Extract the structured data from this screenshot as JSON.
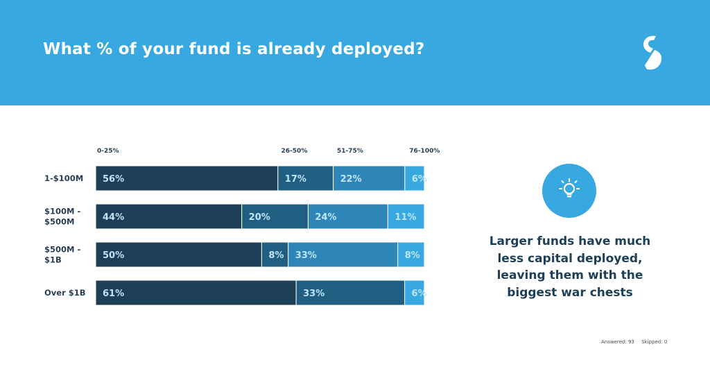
{
  "header": {
    "title": "What % of your fund is already deployed?"
  },
  "chart_data": {
    "type": "bar",
    "orientation": "horizontal",
    "stacked": true,
    "legend_position": "top",
    "categories": [
      "1-$100M",
      "$100M -\n$500M",
      "$500M -\n$1B",
      "Over $1B"
    ],
    "series": [
      {
        "name": "0-25%",
        "color": "#1c3e57",
        "values": [
          56,
          44,
          50,
          61
        ],
        "labels": [
          "56%",
          "44%",
          "50%",
          "61%"
        ]
      },
      {
        "name": "26-50%",
        "color": "#215f82",
        "values": [
          17,
          20,
          8,
          33
        ],
        "labels": [
          "17%",
          "20%",
          "8%",
          "33%"
        ]
      },
      {
        "name": "51-75%",
        "color": "#2e85b7",
        "values": [
          22,
          24,
          33,
          0
        ],
        "labels": [
          "22%",
          "24%",
          "33%",
          ""
        ]
      },
      {
        "name": "76-100%",
        "color": "#38a9e0",
        "values": [
          6,
          11,
          8,
          6
        ],
        "labels": [
          "6%",
          "11%",
          "8%",
          "6%"
        ]
      }
    ],
    "xlim": [
      0,
      100
    ]
  },
  "insight": {
    "icon": "lightbulb-icon",
    "text": "Larger funds have much less capital deployed, leaving them with the biggest war chests"
  },
  "footer": {
    "answered": "Answered: 93",
    "skipped": "Skipped: 0"
  }
}
